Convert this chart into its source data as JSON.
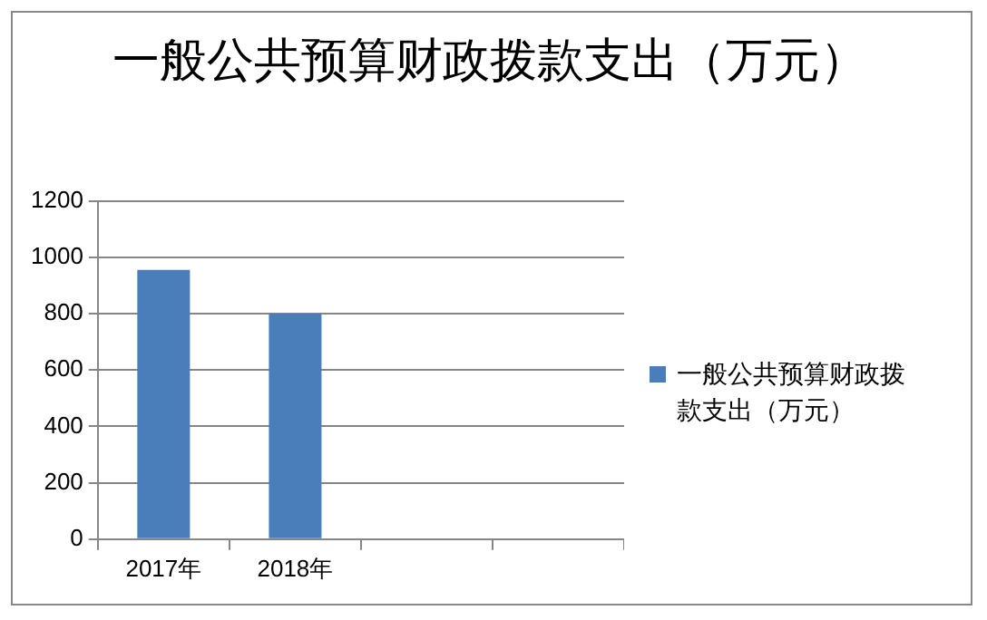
{
  "chart_data": {
    "type": "bar",
    "title": "一般公共预算财政拨款支出（万元）",
    "categories": [
      "2017年",
      "2018年",
      null,
      null
    ],
    "series": [
      {
        "name": "一般公共预算财政拨款支出（万元）",
        "color": "#4a7ebb",
        "values": [
          955,
          800,
          null,
          null
        ]
      }
    ],
    "ylim": [
      0,
      1200
    ],
    "yticks": [
      0,
      200,
      400,
      600,
      800,
      1000,
      1200
    ],
    "grid": "y",
    "legend": "right"
  }
}
